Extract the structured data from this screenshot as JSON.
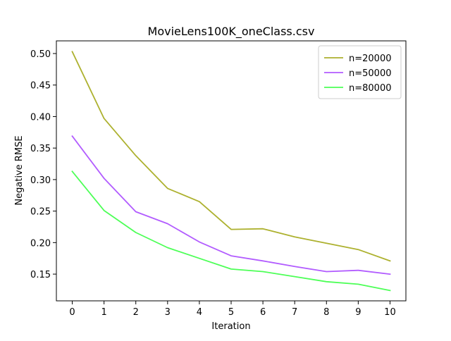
{
  "chart_data": {
    "type": "line",
    "title": "MovieLens100K_oneClass.csv",
    "xlabel": "Iteration",
    "ylabel": "Negative RMSE",
    "x": [
      0,
      1,
      2,
      3,
      4,
      5,
      6,
      7,
      8,
      9,
      10
    ],
    "xlim": [
      -0.5,
      10.5
    ],
    "ylim": [
      0.1076,
      0.5201
    ],
    "xticks": [
      0,
      1,
      2,
      3,
      4,
      5,
      6,
      7,
      8,
      9,
      10
    ],
    "yticks": [
      0.15,
      0.2,
      0.25,
      0.3,
      0.35,
      0.4,
      0.45,
      0.5
    ],
    "ytick_labels": [
      "0.15",
      "0.20",
      "0.25",
      "0.30",
      "0.35",
      "0.40",
      "0.45",
      "0.50"
    ],
    "grid": false,
    "legend_position": "top-right",
    "series": [
      {
        "name": "n=20000",
        "color": "#adb12f",
        "values": [
          0.503,
          0.397,
          0.338,
          0.286,
          0.265,
          0.221,
          0.222,
          0.209,
          0.199,
          0.189,
          0.171
        ]
      },
      {
        "name": "n=50000",
        "color": "#b25cff",
        "values": [
          0.369,
          0.302,
          0.249,
          0.23,
          0.201,
          0.179,
          0.171,
          0.162,
          0.154,
          0.156,
          0.15
        ]
      },
      {
        "name": "n=80000",
        "color": "#4dff57",
        "values": [
          0.313,
          0.251,
          0.216,
          0.192,
          0.175,
          0.158,
          0.154,
          0.146,
          0.138,
          0.134,
          0.124
        ]
      }
    ]
  }
}
